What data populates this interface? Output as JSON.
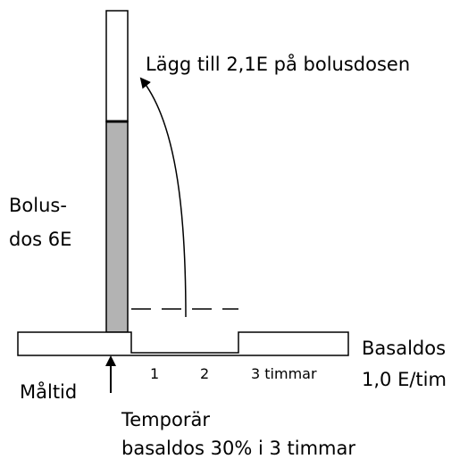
{
  "annotation": "Lägg till 2,1E på bolusdosen",
  "bolus": {
    "line1": "Bolus-",
    "line2": "dos 6E"
  },
  "basal": {
    "line1": "Basaldos",
    "line2": "1,0 E/tim"
  },
  "hours": [
    "1",
    "2",
    "3 timmar"
  ],
  "meal": "Måltid",
  "temporary": {
    "line1": "Temporär",
    "line2": "basaldos 30% i 3 timmar"
  }
}
